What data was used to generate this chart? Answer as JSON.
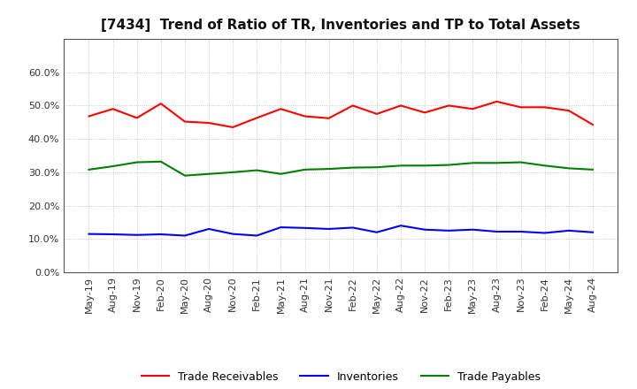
{
  "title": "[7434]  Trend of Ratio of TR, Inventories and TP to Total Assets",
  "x_labels": [
    "May-19",
    "Aug-19",
    "Nov-19",
    "Feb-20",
    "May-20",
    "Aug-20",
    "Nov-20",
    "Feb-21",
    "May-21",
    "Aug-21",
    "Nov-21",
    "Feb-22",
    "May-22",
    "Aug-22",
    "Nov-22",
    "Feb-23",
    "May-23",
    "Aug-23",
    "Nov-23",
    "Feb-24",
    "May-24",
    "Aug-24"
  ],
  "trade_receivables": [
    0.468,
    0.49,
    0.463,
    0.506,
    0.452,
    0.448,
    0.435,
    0.463,
    0.49,
    0.468,
    0.462,
    0.5,
    0.475,
    0.5,
    0.479,
    0.5,
    0.49,
    0.512,
    0.495,
    0.495,
    0.485,
    0.443
  ],
  "inventories": [
    0.115,
    0.114,
    0.112,
    0.114,
    0.11,
    0.13,
    0.115,
    0.11,
    0.135,
    0.133,
    0.13,
    0.134,
    0.12,
    0.14,
    0.128,
    0.125,
    0.128,
    0.122,
    0.122,
    0.118,
    0.125,
    0.12
  ],
  "trade_payables": [
    0.308,
    0.318,
    0.33,
    0.332,
    0.29,
    0.295,
    0.3,
    0.306,
    0.295,
    0.308,
    0.31,
    0.314,
    0.315,
    0.32,
    0.32,
    0.322,
    0.328,
    0.328,
    0.33,
    0.32,
    0.312,
    0.308
  ],
  "tr_color": "#FF0000",
  "inv_color": "#0000FF",
  "tp_color": "#008000",
  "ylim": [
    0.0,
    0.7
  ],
  "yticks": [
    0.0,
    0.1,
    0.2,
    0.3,
    0.4,
    0.5,
    0.6
  ],
  "background_color": "#FFFFFF",
  "plot_background": "#FFFFFF",
  "grid_color": "#AAAAAA",
  "line_width": 1.5,
  "legend_labels": [
    "Trade Receivables",
    "Inventories",
    "Trade Payables"
  ],
  "tick_fontsize": 8,
  "title_fontsize": 11,
  "legend_fontsize": 9
}
